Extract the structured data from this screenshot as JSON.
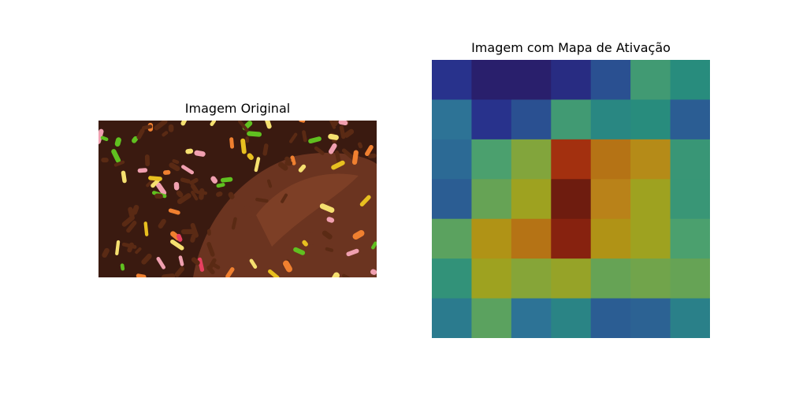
{
  "chart_data": [
    {
      "type": "image",
      "title": "Imagem Original",
      "image_description": "donut-with-chocolate-glaze-and-colorful-sprinkles"
    },
    {
      "type": "heatmap",
      "title": "Imagem com Mapa de Ativação",
      "colormap": "jet-overlay",
      "rows": 7,
      "cols": 7,
      "values": [
        [
          0.15,
          0.05,
          0.05,
          0.12,
          0.22,
          0.52,
          0.45
        ],
        [
          0.3,
          0.15,
          0.22,
          0.52,
          0.42,
          0.45,
          0.25
        ],
        [
          0.28,
          0.55,
          0.65,
          0.95,
          0.85,
          0.8,
          0.5
        ],
        [
          0.25,
          0.6,
          0.72,
          1.0,
          0.82,
          0.72,
          0.5
        ],
        [
          0.58,
          0.78,
          0.85,
          0.98,
          0.78,
          0.72,
          0.55
        ],
        [
          0.48,
          0.72,
          0.66,
          0.7,
          0.6,
          0.62,
          0.6
        ],
        [
          0.35,
          0.58,
          0.3,
          0.4,
          0.25,
          0.26,
          0.38
        ]
      ]
    }
  ]
}
